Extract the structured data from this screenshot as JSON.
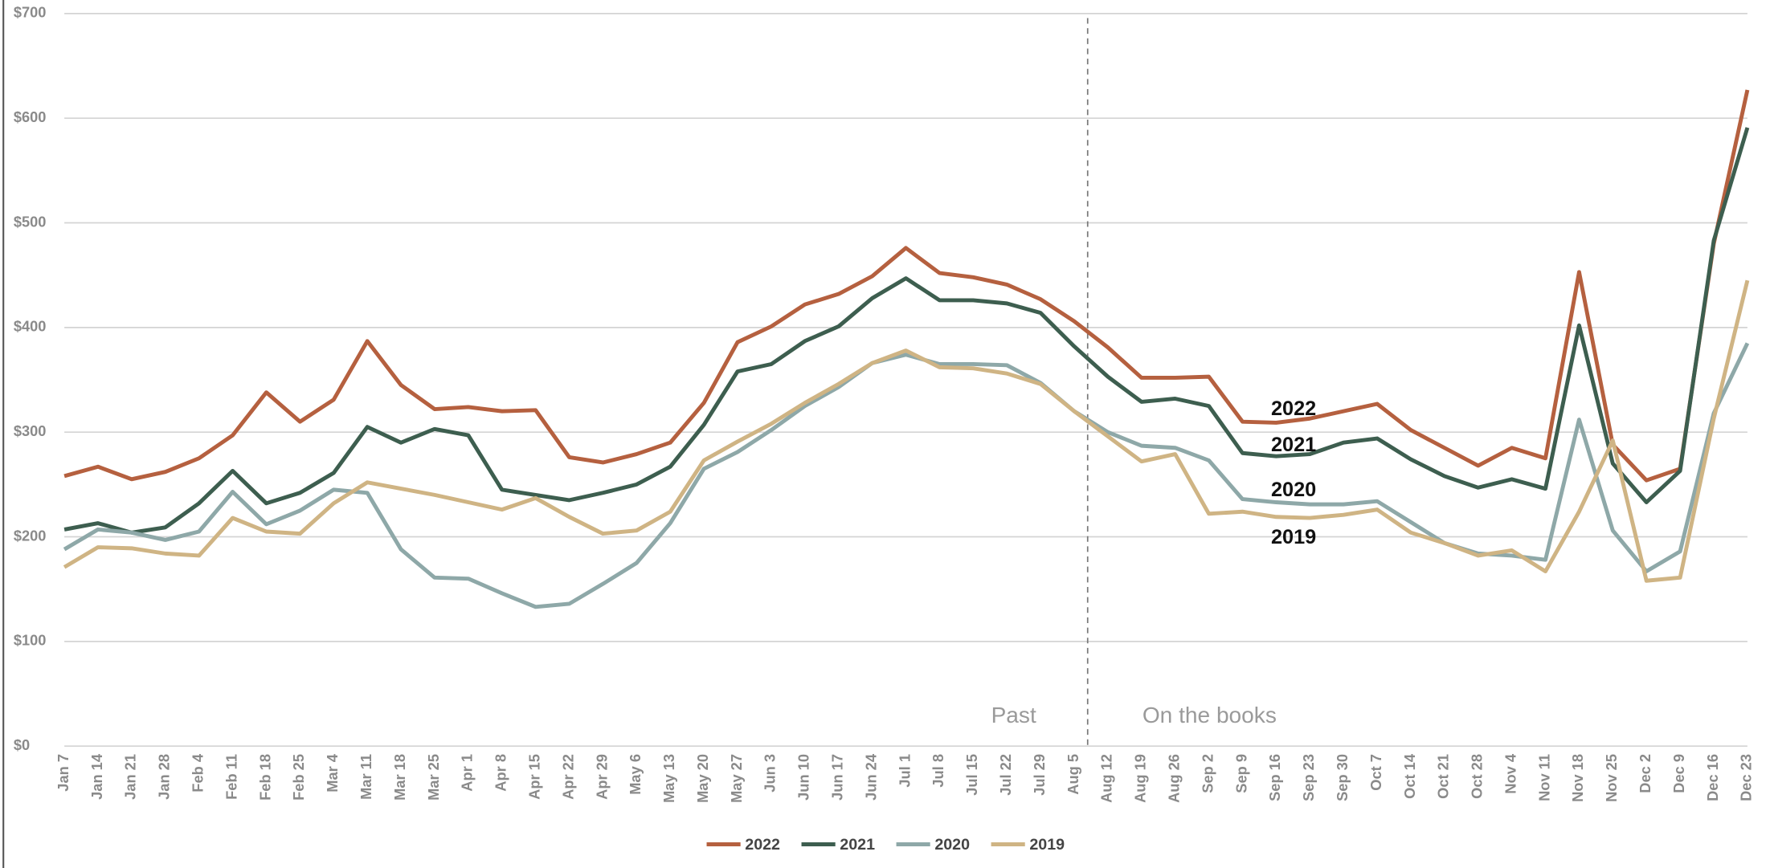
{
  "chart_data": {
    "type": "line",
    "categories": [
      "Jan 7",
      "Jan 14",
      "Jan 21",
      "Jan 28",
      "Feb 4",
      "Feb 11",
      "Feb 18",
      "Feb 25",
      "Mar 4",
      "Mar 11",
      "Mar 18",
      "Mar 25",
      "Apr 1",
      "Apr 8",
      "Apr 15",
      "Apr 22",
      "Apr 29",
      "May 6",
      "May 13",
      "May 20",
      "May 27",
      "Jun 3",
      "Jun 10",
      "Jun 17",
      "Jun 24",
      "Jul 1",
      "Jul 8",
      "Jul 15",
      "Jul 22",
      "Jul 29",
      "Aug 5",
      "Aug 12",
      "Aug 19",
      "Aug 26",
      "Sep 2",
      "Sep 9",
      "Sep 16",
      "Sep 23",
      "Sep 30",
      "Oct 7",
      "Oct 14",
      "Oct 21",
      "Oct 28",
      "Nov 4",
      "Nov 11",
      "Nov 18",
      "Nov 25",
      "Dec 2",
      "Dec 9",
      "Dec 16",
      "Dec 23"
    ],
    "series": [
      {
        "name": "2022",
        "color": "#b5603f",
        "values": [
          258,
          267,
          255,
          262,
          275,
          297,
          338,
          310,
          331,
          387,
          345,
          322,
          324,
          320,
          321,
          276,
          271,
          279,
          290,
          328,
          386,
          401,
          422,
          432,
          449,
          476,
          452,
          448,
          441,
          427,
          406,
          381,
          352,
          352,
          353,
          310,
          309,
          313,
          320,
          327,
          302,
          285,
          268,
          285,
          275,
          453,
          288,
          254,
          265,
          480,
          627
        ]
      },
      {
        "name": "2021",
        "color": "#3d5e4f",
        "values": [
          207,
          213,
          204,
          209,
          232,
          263,
          232,
          242,
          261,
          305,
          290,
          303,
          297,
          245,
          240,
          235,
          242,
          250,
          267,
          307,
          358,
          365,
          387,
          401,
          428,
          447,
          426,
          426,
          423,
          414,
          382,
          353,
          329,
          332,
          325,
          280,
          277,
          279,
          290,
          294,
          274,
          258,
          247,
          255,
          246,
          402,
          270,
          233,
          263,
          483,
          591
        ]
      },
      {
        "name": "2020",
        "color": "#8ea8a8",
        "values": [
          188,
          207,
          204,
          197,
          205,
          243,
          212,
          225,
          245,
          242,
          188,
          161,
          160,
          146,
          133,
          136,
          155,
          175,
          213,
          265,
          281,
          302,
          325,
          343,
          366,
          374,
          365,
          365,
          364,
          347,
          320,
          300,
          287,
          285,
          273,
          236,
          233,
          231,
          231,
          234,
          214,
          194,
          184,
          182,
          178,
          312,
          206,
          167,
          186,
          318,
          385
        ]
      },
      {
        "name": "2019",
        "color": "#cfb484",
        "values": [
          171,
          190,
          189,
          184,
          182,
          218,
          205,
          203,
          232,
          252,
          246,
          240,
          233,
          226,
          237,
          219,
          203,
          206,
          224,
          273,
          291,
          308,
          328,
          346,
          366,
          378,
          362,
          361,
          356,
          346,
          320,
          296,
          272,
          279,
          222,
          224,
          219,
          218,
          221,
          226,
          204,
          194,
          182,
          187,
          167,
          224,
          292,
          158,
          161,
          313,
          445
        ]
      }
    ],
    "ylim": [
      0,
      700
    ],
    "yticks": [
      {
        "value": 0,
        "label": "$0"
      },
      {
        "value": 100,
        "label": "$100"
      },
      {
        "value": 200,
        "label": "$200"
      },
      {
        "value": 300,
        "label": "$300"
      },
      {
        "value": 400,
        "label": "$400"
      },
      {
        "value": 500,
        "label": "$500"
      },
      {
        "value": 600,
        "label": "$600"
      },
      {
        "value": 700,
        "label": "$700"
      }
    ],
    "grid": true,
    "legend": "bottom",
    "annotations": [
      "Past",
      "On the books"
    ]
  }
}
